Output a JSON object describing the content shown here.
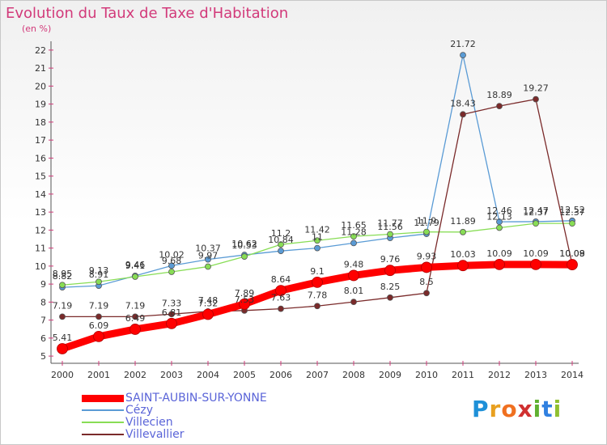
{
  "header": {
    "title": "Evolution du Taux de Taxe d'Habitation",
    "unit": "(en %)"
  },
  "logo": {
    "letters": [
      "P",
      "r",
      "o",
      "x",
      "i",
      "t",
      "i"
    ],
    "colors": [
      "#1e90d8",
      "#e8a020",
      "#f07020",
      "#d03030",
      "#60b030",
      "#3080e0",
      "#90c030"
    ]
  },
  "chart_data": {
    "type": "line",
    "title": "Evolution du Taux de Taxe d'Habitation",
    "ylabel": "(en %)",
    "xlabel": "",
    "x": [
      "2000",
      "2001",
      "2002",
      "2003",
      "2004",
      "2005",
      "2006",
      "2007",
      "2008",
      "2009",
      "2010",
      "2011",
      "2012",
      "2013",
      "2014"
    ],
    "ylim": [
      4.6,
      22.4
    ],
    "yticks": [
      "5",
      "6",
      "7",
      "8",
      "9",
      "10",
      "11",
      "12",
      "13",
      "14",
      "15",
      "16",
      "17",
      "18",
      "19",
      "20",
      "21",
      "22"
    ],
    "grid": false,
    "legend": "bottom-left",
    "series": [
      {
        "name": "SAINT-AUBIN-SUR-YONNE",
        "color": "#ff0000",
        "values": [
          5.41,
          6.09,
          6.49,
          6.81,
          7.32,
          7.89,
          8.64,
          9.1,
          9.48,
          9.76,
          9.93,
          10.03,
          10.09,
          10.09,
          10.08
        ]
      },
      {
        "name": "Cézy",
        "color": "#5a9bd5",
        "values": [
          8.82,
          8.91,
          9.46,
          10.02,
          10.37,
          10.62,
          10.84,
          11.0,
          11.28,
          11.56,
          11.79,
          21.72,
          12.46,
          12.47,
          12.52
        ]
      },
      {
        "name": "Villecien",
        "color": "#88dd55",
        "values": [
          8.95,
          9.13,
          9.41,
          9.68,
          9.97,
          10.53,
          11.2,
          11.42,
          11.65,
          11.77,
          11.9,
          11.89,
          12.13,
          12.37,
          12.37
        ]
      },
      {
        "name": "Villevallier",
        "color": "#7a2a2a",
        "values": [
          7.19,
          7.19,
          7.19,
          7.33,
          7.48,
          7.53,
          7.63,
          7.78,
          8.01,
          8.25,
          8.5,
          18.43,
          18.89,
          19.27,
          10.09
        ]
      }
    ],
    "data_labels": [
      [
        "5.41",
        "6.09",
        "6.49",
        "6.81",
        "7.32",
        "7.89",
        "8.64",
        "9.1",
        "9.48",
        "9.76",
        "9.93",
        "10.03",
        "10.09",
        "10.09",
        "10.08"
      ],
      [
        "8.82",
        "8.91",
        "9.46",
        "10.02",
        "10.37",
        "10.62",
        "10.84",
        "11",
        "11.28",
        "11.56",
        "11.79",
        "21.72",
        "12.46",
        "12.47",
        "12.52"
      ],
      [
        "8.95",
        "9.13",
        "9.41",
        "9.68",
        "9.97",
        "10.53",
        "11.2",
        "11.42",
        "11.65",
        "11.77",
        "11.9",
        "11.89",
        "12.13",
        "12.37",
        "12.37"
      ],
      [
        "7.19",
        "7.19",
        "7.19",
        "7.33",
        "7.48",
        "7.53",
        "7.63",
        "7.78",
        "8.01",
        "8.25",
        "8.5",
        "18.43",
        "18.89",
        "19.27",
        "10.09"
      ]
    ]
  }
}
